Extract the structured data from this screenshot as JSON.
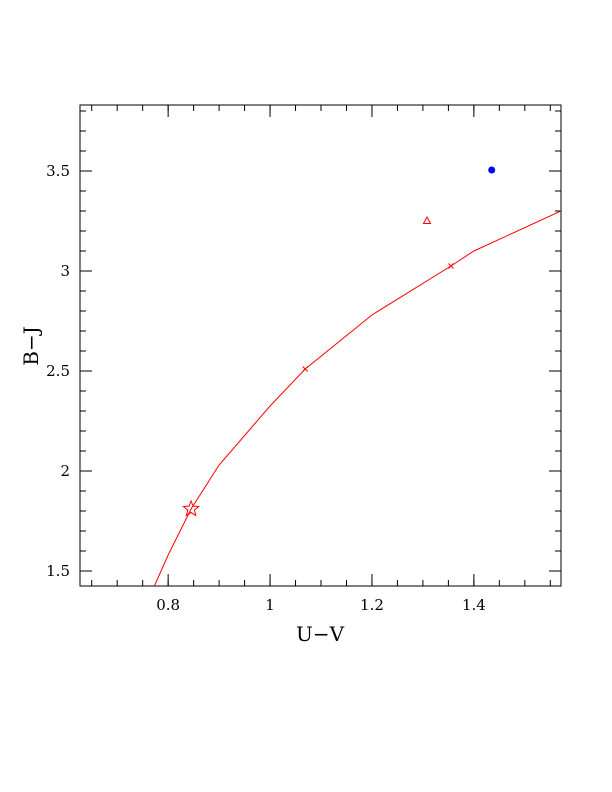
{
  "chart_data": {
    "type": "scatter",
    "xlabel": "U−V",
    "ylabel": "B−J",
    "xlim": [
      0.627,
      1.571
    ],
    "ylim": [
      1.425,
      3.83
    ],
    "xticks": [
      0.8,
      1,
      1.2,
      1.4
    ],
    "yticks": [
      1.5,
      2,
      2.5,
      3,
      3.5
    ],
    "xminor": 0.05,
    "yminor": 0.1,
    "series": [
      {
        "kind": "line",
        "color": "#ff0000",
        "x": [
          0.773,
          0.8,
          0.845,
          0.9,
          1.0,
          1.069,
          1.2,
          1.355,
          1.4,
          1.571
        ],
        "values": [
          1.425,
          1.58,
          1.81,
          2.03,
          2.325,
          2.51,
          2.78,
          3.025,
          3.1,
          3.3
        ]
      },
      {
        "kind": "cross",
        "color": "#ff0000",
        "x": [
          1.069,
          1.355
        ],
        "values": [
          2.51,
          3.025
        ]
      },
      {
        "kind": "star",
        "color": "#ff0000",
        "x": [
          0.845
        ],
        "values": [
          1.81
        ]
      },
      {
        "kind": "triangle",
        "color": "#ff0000",
        "x": [
          1.308
        ],
        "values": [
          3.25
        ]
      },
      {
        "kind": "circle",
        "color": "#0000ff",
        "x": [
          1.435
        ],
        "values": [
          3.505
        ]
      }
    ]
  }
}
